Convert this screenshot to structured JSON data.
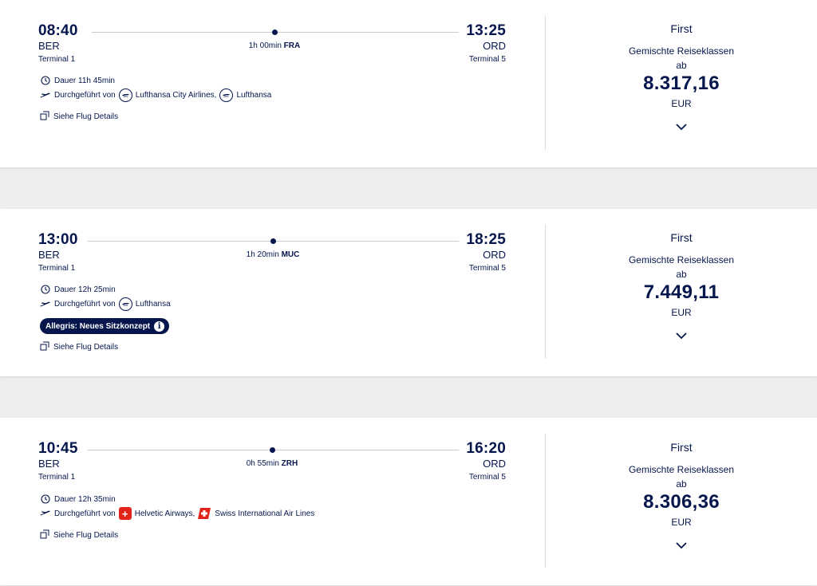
{
  "flights": [
    {
      "dep_time": "08:40",
      "dep_code": "BER",
      "dep_terminal": "Terminal 1",
      "arr_time": "13:25",
      "arr_code": "ORD",
      "arr_terminal": "Terminal 5",
      "stop_duration": "1h 00min",
      "stop_airport": "FRA",
      "duration_label": "Dauer 11h 45min",
      "operated_by_label": "Durchgeführt von",
      "carriers": [
        "Lufthansa City Airlines,",
        "Lufthansa"
      ],
      "details_label": "Siehe Flug Details",
      "cabin": "First",
      "mixed_label": "Gemischte Reiseklassen",
      "from_label": "ab",
      "price": "8.317,16",
      "currency": "EUR"
    },
    {
      "dep_time": "13:00",
      "dep_code": "BER",
      "dep_terminal": "Terminal 1",
      "arr_time": "18:25",
      "arr_code": "ORD",
      "arr_terminal": "Terminal 5",
      "stop_duration": "1h 20min",
      "stop_airport": "MUC",
      "duration_label": "Dauer 12h 25min",
      "operated_by_label": "Durchgeführt von",
      "carriers": [
        "Lufthansa"
      ],
      "badge": "Allegris: Neues Sitzkonzept",
      "details_label": "Siehe Flug Details",
      "cabin": "First",
      "mixed_label": "Gemischte Reiseklassen",
      "from_label": "ab",
      "price": "7.449,11",
      "currency": "EUR"
    },
    {
      "dep_time": "10:45",
      "dep_code": "BER",
      "dep_terminal": "Terminal 1",
      "arr_time": "16:20",
      "arr_code": "ORD",
      "arr_terminal": "Terminal 5",
      "stop_duration": "0h 55min",
      "stop_airport": "ZRH",
      "duration_label": "Dauer 12h 35min",
      "operated_by_label": "Durchgeführt von",
      "carriers": [
        "Helvetic Airways,",
        "Swiss International Air Lines"
      ],
      "details_label": "Siehe Flug Details",
      "cabin": "First",
      "mixed_label": "Gemischte Reiseklassen",
      "from_label": "ab",
      "price": "8.306,36",
      "currency": "EUR"
    }
  ],
  "colors": {
    "navy": "#05164d",
    "background": "#eeeef0",
    "card": "#ffffff",
    "swiss_red": "#e2231a"
  },
  "icons": [
    "clock-icon",
    "plane-icon",
    "lufthansa-logo-icon",
    "helvetic-logo-icon",
    "swiss-logo-icon",
    "external-link-icon",
    "chevron-down-icon",
    "info-icon"
  ]
}
